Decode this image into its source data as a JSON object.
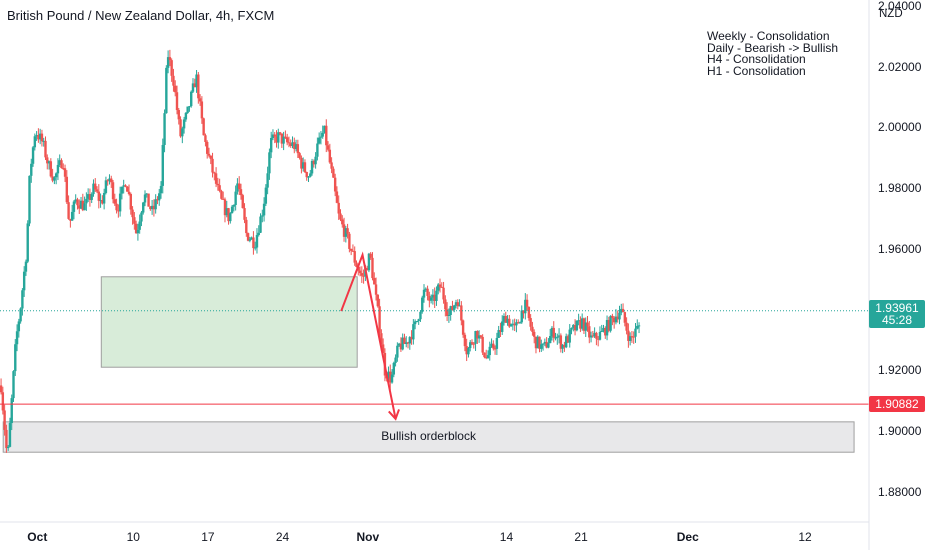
{
  "header": {
    "title": "British Pound / New Zealand Dollar, 4h, FXCM",
    "currency": "NZD"
  },
  "notes": [
    "Weekly - Consolidation",
    "Daily - Bearish -> Bullish",
    "H4 - Consolidation",
    "H1 - Consolidation"
  ],
  "colors": {
    "up": "#26a69a",
    "down": "#ef5350",
    "support_line": "#f23645",
    "last_price_tag": "#26a69a",
    "support_tag": "#f23645",
    "consolidation_fill": "#d8ecd9",
    "orderblock_fill": "#e8e8ea",
    "projection": "#f23645"
  },
  "chart_data": {
    "type": "candlestick",
    "y_ticks": [
      "2.04000",
      "2.02000",
      "2.00000",
      "1.98000",
      "1.96000",
      "1.92000",
      "1.90000",
      "1.88000"
    ],
    "x_ticks": [
      {
        "label": "Oct",
        "day": 1,
        "bold": true
      },
      {
        "label": "10",
        "day": 10,
        "bold": false
      },
      {
        "label": "17",
        "day": 17,
        "bold": false
      },
      {
        "label": "24",
        "day": 24,
        "bold": false
      },
      {
        "label": "Nov",
        "day": 32,
        "bold": true
      },
      {
        "label": "14",
        "day": 45,
        "bold": false
      },
      {
        "label": "21",
        "day": 52,
        "bold": false
      },
      {
        "label": "Dec",
        "day": 62,
        "bold": true
      },
      {
        "label": "12",
        "day": 73,
        "bold": false
      }
    ],
    "ylim": [
      1.87,
      2.042
    ],
    "xlim_days": [
      -2.5,
      79
    ],
    "last_price": {
      "value": "1.93961",
      "countdown": "45:28"
    },
    "support_level": {
      "value": "1.90882"
    },
    "consolidation_zone": {
      "day_start": 7.0,
      "day_end": 31.0,
      "low": 1.921,
      "high": 1.9508
    },
    "orderblock_zone": {
      "label": "Bullish orderblock",
      "day_start": -2.2,
      "day_end": 77.6,
      "low": 1.893,
      "high": 1.903
    },
    "projection_path": [
      [
        29.5,
        1.9395
      ],
      [
        31.5,
        1.958
      ],
      [
        34.6,
        1.904
      ]
    ],
    "anchors": [
      [
        -2.4,
        1.915
      ],
      [
        -1.8,
        1.89
      ],
      [
        -1.0,
        1.93
      ],
      [
        -0.6,
        1.94
      ],
      [
        0.0,
        1.96
      ],
      [
        0.3,
        1.985
      ],
      [
        0.8,
        1.999
      ],
      [
        1.5,
        1.995
      ],
      [
        2.0,
        1.988
      ],
      [
        2.6,
        1.983
      ],
      [
        3.4,
        1.99
      ],
      [
        4.0,
        1.968
      ],
      [
        4.6,
        1.976
      ],
      [
        5.5,
        1.974
      ],
      [
        6.3,
        1.98
      ],
      [
        7.0,
        1.975
      ],
      [
        7.7,
        1.984
      ],
      [
        8.5,
        1.973
      ],
      [
        9.3,
        1.983
      ],
      [
        10.3,
        1.965
      ],
      [
        11.0,
        1.978
      ],
      [
        11.8,
        1.972
      ],
      [
        12.6,
        1.98
      ],
      [
        13.2,
        2.025
      ],
      [
        13.8,
        2.015
      ],
      [
        14.4,
        1.997
      ],
      [
        15.1,
        2.005
      ],
      [
        15.9,
        2.017
      ],
      [
        16.6,
        1.997
      ],
      [
        17.4,
        1.986
      ],
      [
        18.2,
        1.976
      ],
      [
        19.0,
        1.97
      ],
      [
        19.8,
        1.982
      ],
      [
        20.6,
        1.965
      ],
      [
        21.4,
        1.962
      ],
      [
        22.2,
        1.974
      ],
      [
        22.9,
        1.995
      ],
      [
        23.6,
        1.997
      ],
      [
        24.3,
        1.995
      ],
      [
        25.1,
        1.994
      ],
      [
        25.9,
        1.987
      ],
      [
        26.5,
        1.984
      ],
      [
        27.2,
        1.993
      ],
      [
        27.9,
        1.999
      ],
      [
        28.6,
        1.985
      ],
      [
        29.3,
        1.97
      ],
      [
        29.9,
        1.965
      ],
      [
        30.8,
        1.956
      ],
      [
        31.5,
        1.95
      ],
      [
        32.2,
        1.958
      ],
      [
        32.9,
        1.94
      ],
      [
        33.6,
        1.92
      ],
      [
        34.2,
        1.917
      ],
      [
        34.9,
        1.928
      ],
      [
        35.6,
        1.929
      ],
      [
        36.5,
        1.935
      ],
      [
        37.3,
        1.946
      ],
      [
        38.0,
        1.942
      ],
      [
        38.8,
        1.948
      ],
      [
        39.6,
        1.938
      ],
      [
        40.4,
        1.944
      ],
      [
        41.3,
        1.926
      ],
      [
        42.2,
        1.933
      ],
      [
        43.1,
        1.924
      ],
      [
        44.0,
        1.929
      ],
      [
        44.9,
        1.938
      ],
      [
        45.8,
        1.933
      ],
      [
        46.7,
        1.942
      ],
      [
        47.6,
        1.93
      ],
      [
        48.5,
        1.927
      ],
      [
        49.4,
        1.933
      ],
      [
        50.3,
        1.928
      ],
      [
        51.2,
        1.933
      ],
      [
        52.1,
        1.936
      ],
      [
        53.0,
        1.93
      ],
      [
        53.9,
        1.932
      ],
      [
        54.8,
        1.936
      ],
      [
        55.7,
        1.94
      ],
      [
        56.6,
        1.93
      ],
      [
        57.5,
        1.935
      ]
    ]
  }
}
